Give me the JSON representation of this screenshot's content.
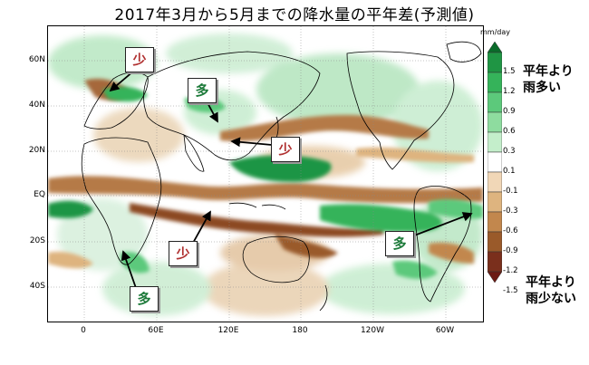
{
  "title": "2017年3月から5月までの降水量の平年差(予測値)",
  "lat_labels": [
    "60N",
    "40N",
    "20N",
    "EQ",
    "20S",
    "40S"
  ],
  "lon_labels": [
    "0",
    "60E",
    "120E",
    "180",
    "120W",
    "60W"
  ],
  "colorbar": {
    "unit": "mm/day",
    "ticks": [
      "1.5",
      "1.2",
      "0.9",
      "0.6",
      "0.3",
      "0.1",
      "-0.1",
      "-0.3",
      "-0.6",
      "-0.9",
      "-1.2",
      "-1.5"
    ],
    "colors": [
      "#0a6b2a",
      "#1f9544",
      "#35b35a",
      "#5cc97b",
      "#8edc9f",
      "#c4eecb",
      "#ffffff",
      "#f1d7b7",
      "#deb47f",
      "#c2874d",
      "#9a5a2a",
      "#7a2f1c",
      "#6b1a14"
    ],
    "wet_label_line1": "平年より",
    "wet_label_line2": "雨多い",
    "dry_label_line1": "平年より",
    "dry_label_line2": "雨少ない"
  },
  "annotations": {
    "europe": "少",
    "china": "多",
    "japan": "少",
    "south_america": "多",
    "indonesia": "少",
    "africa": "多"
  }
}
